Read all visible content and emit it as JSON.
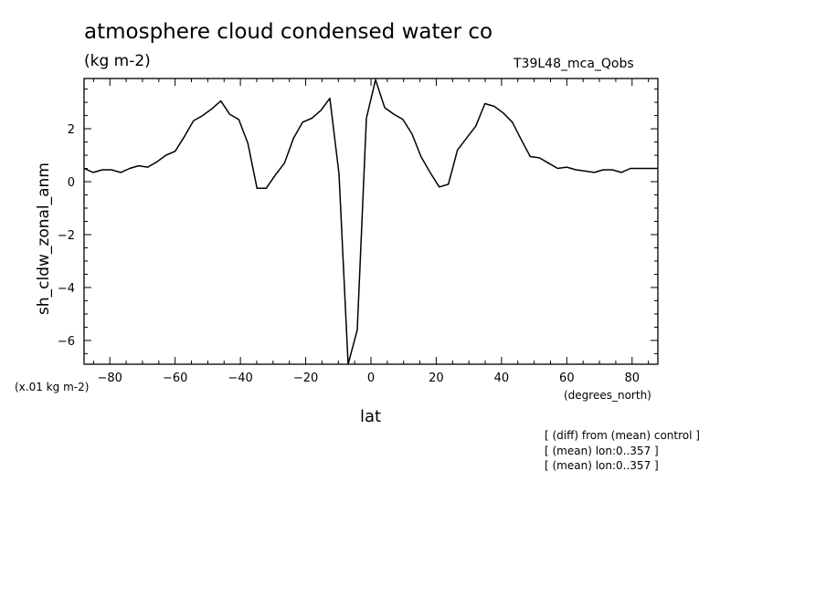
{
  "chart_data": {
    "type": "line",
    "title": "atmosphere cloud condensed water co",
    "units": "(kg m-2)",
    "run_label": "T39L48_mca_Qobs",
    "scale_note": "(x.01 kg m-2)",
    "xlabel": "lat",
    "xunits": "(degrees_north)",
    "ylabel": "sh_cldw_zonal_anm",
    "xlim": [
      -87.9,
      87.9
    ],
    "ylim": [
      -6.9,
      3.9
    ],
    "xticks": [
      -80,
      -60,
      -40,
      -20,
      0,
      20,
      40,
      60,
      80
    ],
    "yticks": [
      -6,
      -4,
      -2,
      0,
      2
    ],
    "grid": false,
    "series": [
      {
        "x": [
          -87.9,
          -85.1,
          -82.3,
          -79.5,
          -76.7,
          -73.9,
          -71.2,
          -68.4,
          -65.6,
          -62.8,
          -60.0,
          -57.2,
          -54.4,
          -51.6,
          -48.8,
          -46.0,
          -43.3,
          -40.5,
          -37.7,
          -34.9,
          -32.1,
          -29.3,
          -26.5,
          -23.7,
          -20.9,
          -18.1,
          -15.3,
          -12.6,
          -9.8,
          -7.0,
          -4.2,
          -1.4,
          1.4,
          4.2,
          7.0,
          9.8,
          12.6,
          15.3,
          18.1,
          20.9,
          23.7,
          26.5,
          29.3,
          32.1,
          34.9,
          37.7,
          40.5,
          43.3,
          46.0,
          48.8,
          51.6,
          54.4,
          57.2,
          60.0,
          62.8,
          65.6,
          68.4,
          71.2,
          73.9,
          76.7,
          79.5,
          82.3,
          85.1,
          87.9
        ],
        "values": [
          0.5,
          0.35,
          0.45,
          0.45,
          0.35,
          0.5,
          0.6,
          0.55,
          0.75,
          1.0,
          1.15,
          1.7,
          2.3,
          2.5,
          2.75,
          3.05,
          2.55,
          2.35,
          1.45,
          -0.25,
          -0.25,
          0.25,
          0.7,
          1.65,
          2.25,
          2.4,
          2.7,
          3.15,
          0.3,
          -6.9,
          -5.6,
          2.4,
          3.85,
          2.8,
          2.55,
          2.35,
          1.8,
          0.95,
          0.35,
          -0.2,
          -0.1,
          1.2,
          1.65,
          2.1,
          2.95,
          2.85,
          2.6,
          2.25,
          1.6,
          0.95,
          0.9,
          0.7,
          0.5,
          0.55,
          0.45,
          0.4,
          0.35,
          0.45,
          0.45,
          0.35,
          0.5,
          0.5,
          0.5,
          0.5
        ]
      }
    ]
  },
  "notes": [
    "[ (diff) from (mean) control ]",
    "[ (mean) lon:0..357 ]",
    "[ (mean) lon:0..357 ]"
  ]
}
